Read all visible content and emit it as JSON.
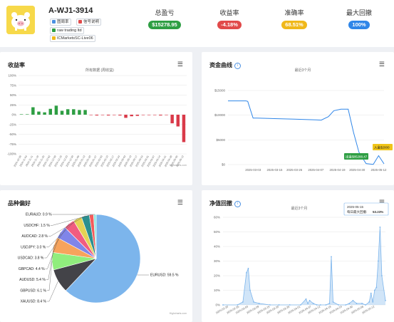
{
  "account": {
    "name": "A-WJ1-3914",
    "tags": [
      "图周率",
      "信号说明",
      "raw trading ltd",
      "ICMarketsSC-Live06"
    ]
  },
  "stats": [
    {
      "label": "总盈亏",
      "value": "$15278.95",
      "color": "#2e9e43"
    },
    {
      "label": "收益率",
      "value": "-4.18%",
      "color": "#e14a4a"
    },
    {
      "label": "准确率",
      "value": "68.51%",
      "color": "#f0b81a"
    },
    {
      "label": "最大回撤",
      "value": "100%",
      "color": "#2f86e8"
    }
  ],
  "panels": {
    "returns": {
      "title": "收益率",
      "subtitle": "所有数据 (周收益)",
      "credit": "Highcharts.com"
    },
    "equity": {
      "title": "资金曲线",
      "subtitle": "最近3个月",
      "credit": "Highcharts.com",
      "flag_withdraw": "出金$85288.47",
      "flag_deposit": "入金$2000"
    },
    "symbols": {
      "title": "品种偏好",
      "credit": "Highcharts.com"
    },
    "drawdown": {
      "title": "净值回撤",
      "subtitle": "最近3个月",
      "credit": "Highcharts.com",
      "tooltip_date": "2025-05-15",
      "tooltip_label": "每日最大回撤:",
      "tooltip_value": "53.23%"
    }
  },
  "chart_data": [
    {
      "type": "bar",
      "title": "收益率",
      "subtitle": "所有数据 (周收益)",
      "ylim": [
        -100,
        100
      ],
      "yticks": [
        "100%",
        "75%",
        "50%",
        "25%",
        "0%",
        "-25%",
        "-50%",
        "-75%",
        "-100%"
      ],
      "categories": [
        "2024-10-28",
        "2024-11-04",
        "2024-11-11",
        "2024-11-18",
        "2024-11-25",
        "2024-12-02",
        "2024-12-09",
        "2024-12-16",
        "2024-12-23",
        "2024-12-30",
        "2025-01-06",
        "2025-01-13",
        "2025-01-20",
        "2025-01-27",
        "2025-02-03",
        "2025-02-10",
        "2025-02-17",
        "2025-02-24",
        "2025-03-03",
        "2025-03-10",
        "2025-03-17",
        "2025-03-24",
        "2025-03-31",
        "2025-04-07",
        "2025-04-14",
        "2025-04-21",
        "2025-04-28",
        "2025-05-05",
        "2025-05-12"
      ],
      "values": [
        1,
        0,
        19,
        8,
        6,
        15,
        23,
        10,
        14,
        14,
        12,
        12,
        -1,
        -2,
        -1,
        -2,
        -1,
        -2,
        -8,
        -4,
        -3,
        -1,
        -1,
        -1,
        -2,
        -1,
        -22,
        -30,
        -70
      ]
    },
    {
      "type": "line",
      "title": "资金曲线",
      "subtitle": "最近3个月",
      "ylim": [
        0,
        15000
      ],
      "yticks": [
        "$15000",
        "$10000",
        "$5000",
        "$0"
      ],
      "xticks": [
        "2025-03-03",
        "2025-03-15",
        "2025-03-26",
        "2025-04-07",
        "2025-04-19",
        "2025-04-30",
        "2025-05-12"
      ],
      "x": [
        "2025-02-17",
        "2025-02-27",
        "2025-02-28",
        "2025-03-03",
        "2025-03-05",
        "2025-03-15",
        "2025-03-26",
        "2025-04-07",
        "2025-04-10",
        "2025-04-14",
        "2025-04-17",
        "2025-04-21",
        "2025-04-25",
        "2025-04-28",
        "2025-05-01",
        "2025-05-05",
        "2025-05-09",
        "2025-05-12",
        "2025-05-15"
      ],
      "values": [
        12900,
        12900,
        12800,
        9400,
        9400,
        9300,
        9200,
        9050,
        9000,
        9700,
        10900,
        11200,
        11200,
        6500,
        2500,
        200,
        50,
        1800,
        150
      ]
    },
    {
      "type": "pie",
      "title": "品种偏好",
      "labels": [
        "EURUSD",
        "XAUUSD",
        "GBPUSD",
        "AUDUSD",
        "GBPCAD",
        "USDCAD",
        "USDJPY",
        "AUDCAD",
        "USDCHF",
        "EURAUD"
      ],
      "values": [
        59.5,
        8.4,
        6.1,
        5.4,
        4.4,
        3.8,
        3.0,
        2.8,
        1.5,
        0.9
      ],
      "display": [
        "EURUSD: 59.5 %",
        "XAUUSD: 8.4 %",
        "GBPUSD: 6.1 %",
        "AUDUSD: 5.4 %",
        "GBPCAD: 4.4 %",
        "USDCAD: 3.8 %",
        "USDJPY: 3.0 %",
        "AUDCAD: 2.8 %",
        "USDCHF: 1.5 %",
        "EURAUD: 0.9 %"
      ],
      "colors": [
        "#7cb5ec",
        "#434348",
        "#90ed7d",
        "#f7a35c",
        "#8085e9",
        "#f15c80",
        "#e4d354",
        "#2b908f",
        "#f45b5b",
        "#91e8e1"
      ]
    },
    {
      "type": "area",
      "title": "净值回撤",
      "subtitle": "最近3个月",
      "ylim": [
        0,
        60
      ],
      "yticks": [
        "60%",
        "50%",
        "40%",
        "30%",
        "20%",
        "10%",
        "0%"
      ],
      "xticks": [
        "2025-02-20",
        "2025-02-26",
        "2025-03-03",
        "2025-03-09",
        "2025-03-15",
        "2025-03-20",
        "2025-03-26",
        "2025-04-01",
        "2025-04-07",
        "2025-04-12",
        "2025-04-18",
        "2025-04-24",
        "2025-04-30",
        "2025-05-06",
        "2025-05-12"
      ],
      "x": [
        "2025-02-17",
        "2025-02-25",
        "2025-02-28",
        "2025-03-02",
        "2025-03-03",
        "2025-03-04",
        "2025-03-06",
        "2025-03-09",
        "2025-03-15",
        "2025-03-20",
        "2025-03-26",
        "2025-04-01",
        "2025-04-04",
        "2025-04-05",
        "2025-04-06",
        "2025-04-08",
        "2025-04-10",
        "2025-04-12",
        "2025-04-15",
        "2025-04-17",
        "2025-04-18",
        "2025-04-19",
        "2025-04-22",
        "2025-04-26",
        "2025-04-28",
        "2025-04-30",
        "2025-05-02",
        "2025-05-05",
        "2025-05-07",
        "2025-05-09",
        "2025-05-10",
        "2025-05-11",
        "2025-05-12",
        "2025-05-13",
        "2025-05-14",
        "2025-05-15",
        "2025-05-16",
        "2025-05-18"
      ],
      "values": [
        0,
        0,
        2,
        22,
        25,
        10,
        2,
        1,
        0,
        0,
        0,
        0,
        4,
        1,
        3,
        1,
        0,
        0,
        0,
        1,
        33,
        2,
        0,
        0,
        1,
        3,
        1,
        1,
        0,
        2,
        8,
        2,
        10,
        12,
        30,
        53.23,
        20,
        3
      ]
    }
  ]
}
